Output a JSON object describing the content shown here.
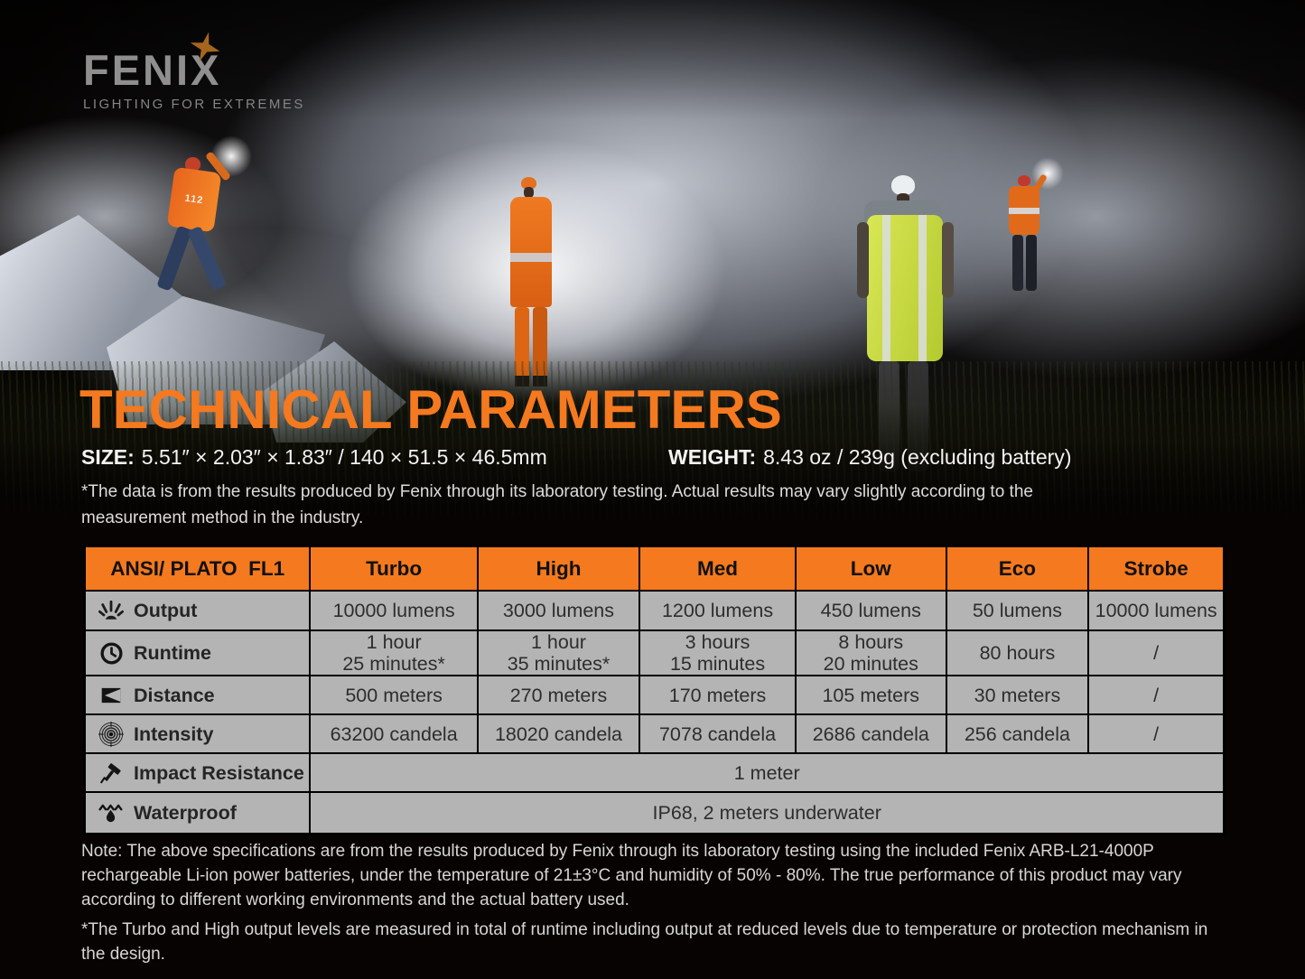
{
  "colors": {
    "accent_orange": "#f4791f",
    "table_gray": "#b4b4b4",
    "header_text": "#111111",
    "page_background": "#060302",
    "logo_gray": "#8f8f8f",
    "star_orange": "#a4661e"
  },
  "brand": {
    "wordmark": "FENIX",
    "tagline": "LIGHTING FOR EXTREMES"
  },
  "scene": {
    "jacket_number": "112"
  },
  "title": "TECHNICAL PARAMETERS",
  "specs": {
    "size_label": "SIZE:",
    "size_value": "5.51″ × 2.03″ × 1.83″ / 140 × 51.5 × 46.5mm",
    "weight_label": "WEIGHT:",
    "weight_value": "8.43 oz / 239g (excluding battery)"
  },
  "disclaimer": "*The data is from the results produced by Fenix through its laboratory testing. Actual results may vary slightly according to the measurement method in the industry.",
  "table": {
    "columns": [
      "ANSI/ PLATO  FL1",
      "Turbo",
      "High",
      "Med",
      "Low",
      "Eco",
      "Strobe"
    ],
    "rows": [
      {
        "icon": "output-icon",
        "label": "Output",
        "values": [
          "10000 lumens",
          "3000 lumens",
          "1200 lumens",
          "450 lumens",
          "50 lumens",
          "10000 lumens"
        ]
      },
      {
        "icon": "runtime-icon",
        "label": "Runtime",
        "values": [
          "1 hour\n25 minutes*",
          "1 hour\n35 minutes*",
          "3 hours\n15 minutes",
          "8 hours\n20 minutes",
          "80 hours",
          "/"
        ]
      },
      {
        "icon": "distance-icon",
        "label": "Distance",
        "values": [
          "500 meters",
          "270 meters",
          "170 meters",
          "105 meters",
          "30 meters",
          "/"
        ]
      },
      {
        "icon": "intensity-icon",
        "label": "Intensity",
        "values": [
          "63200 candela",
          "18020 candela",
          "7078 candela",
          "2686 candela",
          "256 candela",
          "/"
        ]
      },
      {
        "icon": "impact-icon",
        "label": "Impact Resistance",
        "span": true,
        "values": [
          "1 meter"
        ]
      },
      {
        "icon": "waterproof-icon",
        "label": "Waterproof",
        "span": true,
        "values": [
          "IP68, 2 meters underwater"
        ]
      }
    ]
  },
  "notes": {
    "paragraph": "Note: The above specifications are from the results produced by Fenix through its laboratory testing using the included Fenix ARB-L21-4000P rechargeable Li-ion power batteries, under the temperature of 21±3°C and humidity of 50% - 80%. The true performance of this product may vary according to different working environments and the actual battery used.",
    "footnote": "*The Turbo and High output levels are measured in total of runtime including output at reduced levels due to temperature or protection mechanism in the design."
  }
}
